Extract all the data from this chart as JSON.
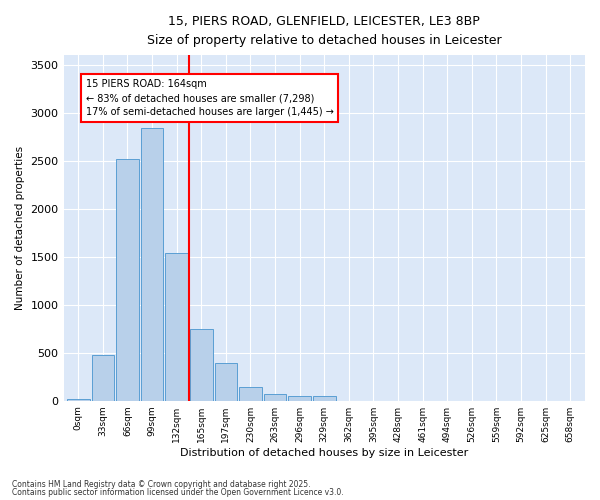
{
  "title1": "15, PIERS ROAD, GLENFIELD, LEICESTER, LE3 8BP",
  "title2": "Size of property relative to detached houses in Leicester",
  "xlabel": "Distribution of detached houses by size in Leicester",
  "ylabel": "Number of detached properties",
  "bar_labels": [
    "0sqm",
    "33sqm",
    "66sqm",
    "99sqm",
    "132sqm",
    "165sqm",
    "197sqm",
    "230sqm",
    "263sqm",
    "296sqm",
    "329sqm",
    "362sqm",
    "395sqm",
    "428sqm",
    "461sqm",
    "494sqm",
    "526sqm",
    "559sqm",
    "592sqm",
    "625sqm",
    "658sqm"
  ],
  "bar_values": [
    20,
    480,
    2520,
    2840,
    1540,
    750,
    390,
    145,
    65,
    50,
    50,
    0,
    0,
    0,
    0,
    0,
    0,
    0,
    0,
    0,
    0
  ],
  "bar_color": "#b8d0ea",
  "bar_edge_color": "#5a9fd4",
  "vline_pos": 4.5,
  "annotation_text": "15 PIERS ROAD: 164sqm\n← 83% of detached houses are smaller (7,298)\n17% of semi-detached houses are larger (1,445) →",
  "ylim": [
    0,
    3600
  ],
  "yticks": [
    0,
    500,
    1000,
    1500,
    2000,
    2500,
    3000,
    3500
  ],
  "background_color": "#dce8f8",
  "grid_color": "#ffffff",
  "footer1": "Contains HM Land Registry data © Crown copyright and database right 2025.",
  "footer2": "Contains public sector information licensed under the Open Government Licence v3.0."
}
